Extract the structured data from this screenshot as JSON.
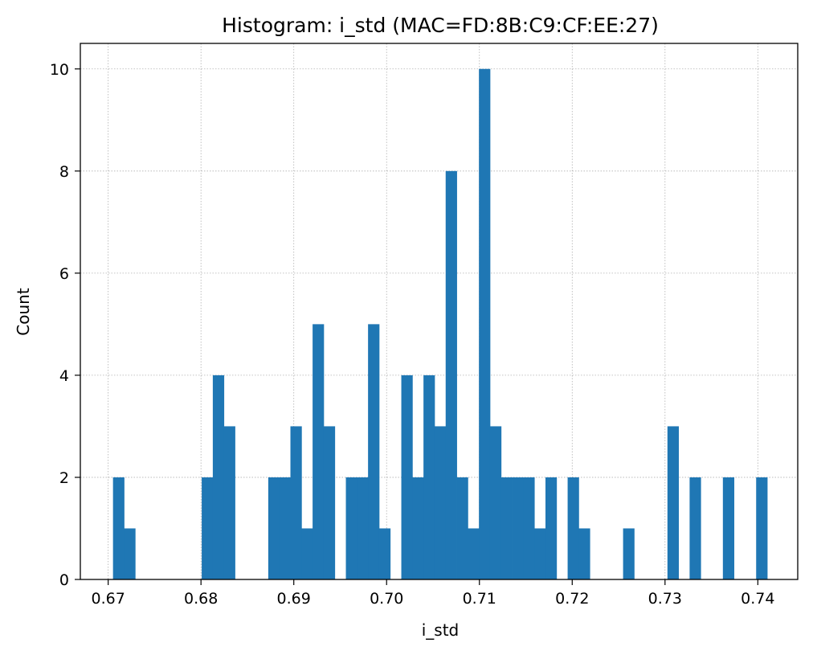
{
  "chart_data": {
    "type": "bar",
    "title": "Histogram: i_std (MAC=FD:8B:C9:CF:EE:27)",
    "xlabel": "i_std",
    "ylabel": "Count",
    "xlim": [
      0.667,
      0.7443
    ],
    "ylim": [
      0,
      10.5
    ],
    "xticks": [
      "0.67",
      "0.68",
      "0.69",
      "0.70",
      "0.71",
      "0.72",
      "0.73",
      "0.74"
    ],
    "xtick_values": [
      0.67,
      0.68,
      0.69,
      0.7,
      0.71,
      0.72,
      0.73,
      0.74
    ],
    "yticks": [
      "0",
      "2",
      "4",
      "6",
      "8",
      "10"
    ],
    "ytick_values": [
      0,
      2,
      4,
      6,
      8,
      10
    ],
    "grid": true,
    "bin_start": 0.67052,
    "bin_width": 0.0011948,
    "counts": [
      2,
      1,
      0,
      0,
      0,
      0,
      0,
      0,
      2,
      4,
      3,
      0,
      0,
      0,
      2,
      2,
      3,
      1,
      5,
      3,
      0,
      2,
      2,
      5,
      1,
      0,
      4,
      2,
      4,
      3,
      8,
      2,
      1,
      10,
      3,
      2,
      2,
      2,
      1,
      2,
      0,
      2,
      1,
      0,
      0,
      0,
      1,
      0,
      0,
      0,
      3,
      0,
      2,
      0,
      0,
      2,
      0,
      0,
      2
    ],
    "color": "#1f77b4"
  }
}
